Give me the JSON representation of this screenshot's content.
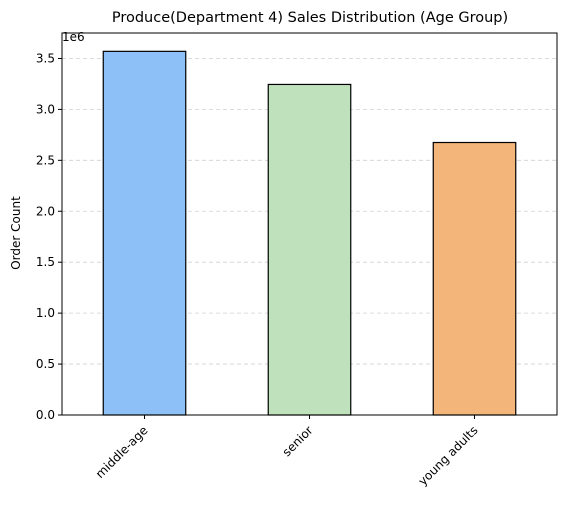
{
  "chart_data": {
    "type": "bar",
    "title": "Produce(Department 4) Sales Distribution (Age Group)",
    "xlabel": "",
    "ylabel": "Order Count",
    "scale_label": "1e6",
    "categories": [
      "middle-age",
      "senior",
      "young adults"
    ],
    "values": [
      3570000,
      3245000,
      2675000
    ],
    "ylim": [
      0,
      3750000
    ],
    "yticks": [
      0,
      500000,
      1000000,
      1500000,
      2000000,
      2500000,
      3000000,
      3500000
    ],
    "ytick_labels": [
      "0.0",
      "0.5",
      "1.0",
      "1.5",
      "2.0",
      "2.5",
      "3.0",
      "3.5"
    ],
    "colors": [
      "#8dc0f6",
      "#bfe1bb",
      "#f3b57a"
    ],
    "edge_color": "#000000",
    "grid": {
      "axis": "y",
      "style": "dashed",
      "color": "#d0d0d0"
    },
    "legend": "none"
  }
}
